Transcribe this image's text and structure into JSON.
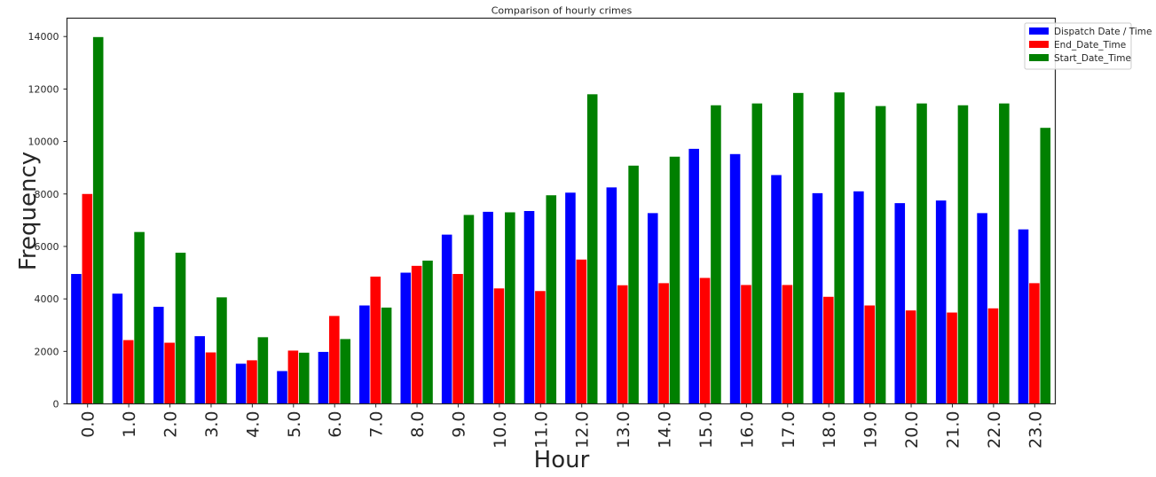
{
  "chart_data": {
    "type": "bar",
    "title": "Comparison of hourly crimes",
    "xlabel": "Hour",
    "ylabel": "Frequency",
    "categories": [
      "0.0",
      "1.0",
      "2.0",
      "3.0",
      "4.0",
      "5.0",
      "6.0",
      "7.0",
      "8.0",
      "9.0",
      "10.0",
      "11.0",
      "12.0",
      "13.0",
      "14.0",
      "15.0",
      "16.0",
      "17.0",
      "18.0",
      "19.0",
      "20.0",
      "21.0",
      "22.0",
      "23.0"
    ],
    "ylim": [
      0,
      14700
    ],
    "yticks": [
      0,
      2000,
      4000,
      6000,
      8000,
      10000,
      12000,
      14000
    ],
    "grid": false,
    "legend_position": "top-right",
    "series": [
      {
        "name": "Dispatch Date / Time",
        "color": "#0000ff",
        "values": [
          4950,
          4200,
          3700,
          2580,
          1530,
          1250,
          1980,
          3750,
          5000,
          6450,
          7320,
          7350,
          8050,
          8250,
          7270,
          9720,
          9520,
          8720,
          8030,
          8100,
          7650,
          7750,
          7270,
          6650
        ]
      },
      {
        "name": "End_Date_Time",
        "color": "#ff0000",
        "values": [
          8000,
          2430,
          2330,
          1960,
          1660,
          2030,
          3350,
          4850,
          5260,
          4950,
          4400,
          4300,
          5500,
          4520,
          4600,
          4800,
          4530,
          4530,
          4080,
          3750,
          3560,
          3480,
          3640,
          4600
        ]
      },
      {
        "name": "Start_Date_Time",
        "color": "#008000",
        "values": [
          13980,
          6550,
          5760,
          4060,
          2540,
          1950,
          2470,
          3670,
          5460,
          7200,
          7300,
          7950,
          11800,
          9080,
          9420,
          11380,
          11450,
          11850,
          11870,
          11350,
          11450,
          11380,
          11450,
          10520
        ]
      }
    ]
  }
}
